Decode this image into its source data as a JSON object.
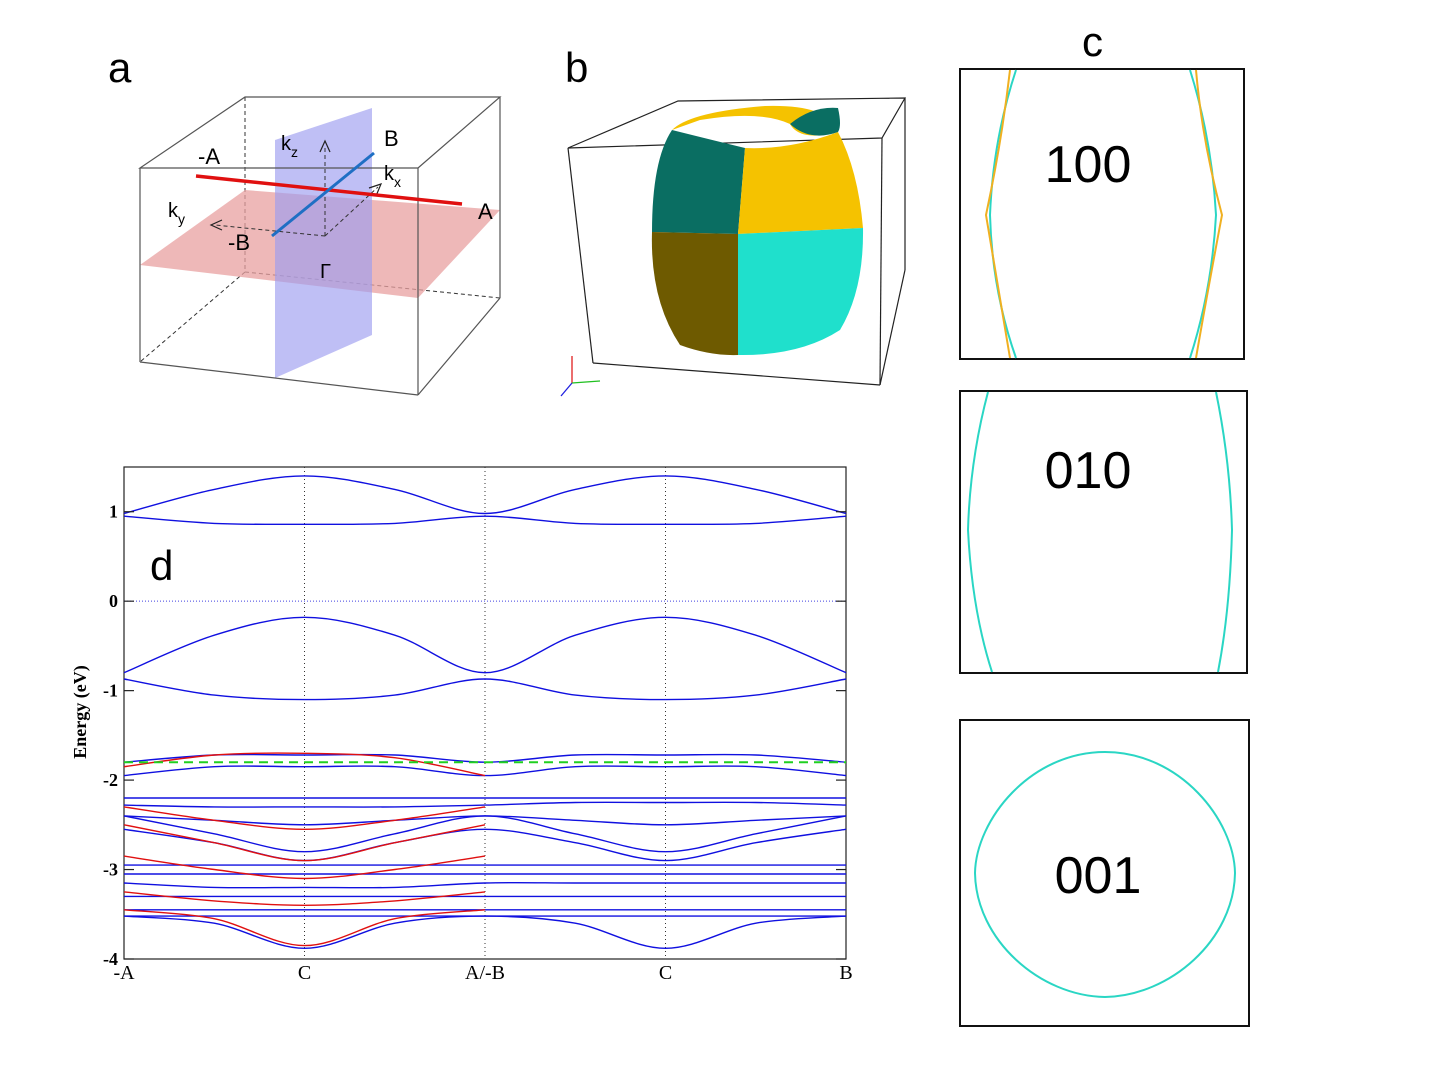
{
  "panels": {
    "a": "a",
    "b": "b",
    "c": "c",
    "d": "d"
  },
  "panel_a": {
    "labels": {
      "minus_a": "-A",
      "a": "A",
      "b": "B",
      "minus_b": "-B",
      "gamma": "Γ",
      "kz": "k",
      "kz_sub": "z",
      "kx": "k",
      "kx_sub": "x",
      "ky": "k",
      "ky_sub": "y"
    },
    "colors": {
      "plane_h": "#e8a0a0",
      "plane_v": "#9c9cf0",
      "line_a": "#e01010",
      "line_b": "#1f6fc4"
    }
  },
  "panel_b": {
    "colors": {
      "yellow": "#f5c200",
      "yellow_dark": "#6e5a00",
      "teal": "#1fe0cc",
      "teal_dark": "#0a6e62"
    }
  },
  "panel_c": {
    "slices": [
      {
        "label": "100"
      },
      {
        "label": "010"
      },
      {
        "label": "001"
      }
    ],
    "colors": {
      "cyan": "#2ad6c4",
      "orange": "#f0b020"
    }
  },
  "chart_data": {
    "type": "line",
    "title": "",
    "xlabel": "",
    "ylabel": "Energy (eV)",
    "ylim": [
      -4,
      1.5
    ],
    "yticks": [
      1,
      0,
      -1,
      -2,
      -3,
      -4
    ],
    "ytick_labels": [
      "1",
      "0",
      "-1",
      "-2",
      "-3",
      "-4"
    ],
    "x_ticks": [
      0,
      1,
      2,
      3,
      4
    ],
    "x_tick_labels": [
      "-A",
      "C",
      "A/-B",
      "C",
      "B"
    ],
    "fermi_level": 0,
    "reference_line": -1.8,
    "colors": {
      "blue": "#1010e0",
      "red": "#e01010",
      "green": "#20d020",
      "fermi": "#4040e0"
    },
    "series": [
      {
        "name": "cb_upper",
        "color": "blue",
        "x": [
          0,
          0.5,
          1,
          1.5,
          2,
          2.5,
          3,
          3.5,
          4
        ],
        "values": [
          0.98,
          1.25,
          1.4,
          1.25,
          0.98,
          1.25,
          1.4,
          1.25,
          0.98
        ]
      },
      {
        "name": "cb_lower",
        "color": "blue",
        "x": [
          0,
          0.5,
          1,
          1.5,
          2,
          2.5,
          3,
          3.5,
          4
        ],
        "values": [
          0.95,
          0.87,
          0.86,
          0.87,
          0.95,
          0.87,
          0.86,
          0.87,
          0.95
        ]
      },
      {
        "name": "vb1",
        "color": "blue",
        "x": [
          0,
          0.5,
          1,
          1.5,
          2,
          2.5,
          3,
          3.5,
          4
        ],
        "values": [
          -0.8,
          -0.38,
          -0.18,
          -0.38,
          -0.8,
          -0.38,
          -0.18,
          -0.38,
          -0.8
        ]
      },
      {
        "name": "vb2",
        "color": "blue",
        "x": [
          0,
          0.5,
          1,
          1.5,
          2,
          2.5,
          3,
          3.5,
          4
        ],
        "values": [
          -0.87,
          -1.05,
          -1.1,
          -1.05,
          -0.87,
          -1.05,
          -1.1,
          -1.05,
          -0.87
        ]
      },
      {
        "name": "vb3",
        "color": "blue",
        "x": [
          0,
          0.5,
          1,
          1.5,
          2,
          2.5,
          3,
          3.5,
          4
        ],
        "values": [
          -1.8,
          -1.72,
          -1.72,
          -1.72,
          -1.8,
          -1.72,
          -1.72,
          -1.72,
          -1.8
        ]
      },
      {
        "name": "vb4",
        "color": "blue",
        "x": [
          0,
          0.5,
          1,
          1.5,
          2,
          2.5,
          3,
          3.5,
          4
        ],
        "values": [
          -1.95,
          -1.85,
          -1.85,
          -1.85,
          -1.95,
          -1.85,
          -1.85,
          -1.85,
          -1.95
        ]
      },
      {
        "name": "vb5",
        "color": "blue",
        "x": [
          0,
          0.5,
          1,
          1.5,
          2,
          2.5,
          3,
          3.5,
          4
        ],
        "values": [
          -2.2,
          -2.2,
          -2.2,
          -2.2,
          -2.2,
          -2.2,
          -2.2,
          -2.2,
          -2.2
        ]
      },
      {
        "name": "vb6",
        "color": "blue",
        "x": [
          0,
          0.5,
          1,
          1.5,
          2,
          2.5,
          3,
          3.5,
          4
        ],
        "values": [
          -2.28,
          -2.3,
          -2.3,
          -2.3,
          -2.28,
          -2.25,
          -2.25,
          -2.25,
          -2.28
        ]
      },
      {
        "name": "vb7",
        "color": "blue",
        "x": [
          0,
          0.5,
          1,
          1.5,
          2,
          2.5,
          3,
          3.5,
          4
        ],
        "values": [
          -2.4,
          -2.45,
          -2.5,
          -2.45,
          -2.4,
          -2.45,
          -2.5,
          -2.45,
          -2.4
        ]
      },
      {
        "name": "vb8",
        "color": "blue",
        "x": [
          0,
          0.5,
          1,
          1.5,
          2,
          2.5,
          3,
          3.5,
          4
        ],
        "values": [
          -2.55,
          -2.7,
          -2.9,
          -2.7,
          -2.55,
          -2.7,
          -2.9,
          -2.7,
          -2.55
        ]
      },
      {
        "name": "vb9",
        "color": "blue",
        "x": [
          0,
          0.5,
          1,
          1.5,
          2,
          2.5,
          3,
          3.5,
          4
        ],
        "values": [
          -2.4,
          -2.6,
          -2.8,
          -2.6,
          -2.4,
          -2.6,
          -2.8,
          -2.6,
          -2.4
        ]
      },
      {
        "name": "vb10",
        "color": "blue",
        "x": [
          0,
          0.5,
          1,
          1.5,
          2,
          2.5,
          3,
          3.5,
          4
        ],
        "values": [
          -2.95,
          -2.95,
          -2.95,
          -2.95,
          -2.95,
          -2.95,
          -2.95,
          -2.95,
          -2.95
        ]
      },
      {
        "name": "vb11",
        "color": "blue",
        "x": [
          0,
          0.5,
          1,
          1.5,
          2,
          2.5,
          3,
          3.5,
          4
        ],
        "values": [
          -3.05,
          -3.05,
          -3.05,
          -3.05,
          -3.05,
          -3.05,
          -3.05,
          -3.05,
          -3.05
        ]
      },
      {
        "name": "vb12",
        "color": "blue",
        "x": [
          0,
          0.5,
          1,
          1.5,
          2,
          2.5,
          3,
          3.5,
          4
        ],
        "values": [
          -3.15,
          -3.2,
          -3.2,
          -3.2,
          -3.15,
          -3.15,
          -3.15,
          -3.15,
          -3.15
        ]
      },
      {
        "name": "vb13",
        "color": "blue",
        "x": [
          0,
          0.5,
          1,
          1.5,
          2,
          2.5,
          3,
          3.5,
          4
        ],
        "values": [
          -3.3,
          -3.3,
          -3.3,
          -3.3,
          -3.3,
          -3.3,
          -3.3,
          -3.3,
          -3.3
        ]
      },
      {
        "name": "vb14",
        "color": "blue",
        "x": [
          0,
          0.5,
          1,
          1.5,
          2,
          2.5,
          3,
          3.5,
          4
        ],
        "values": [
          -3.45,
          -3.45,
          -3.45,
          -3.45,
          -3.45,
          -3.45,
          -3.45,
          -3.45,
          -3.45
        ]
      },
      {
        "name": "vb15",
        "color": "blue",
        "x": [
          0,
          0.5,
          1,
          1.5,
          2,
          2.5,
          3,
          3.5,
          4
        ],
        "values": [
          -3.52,
          -3.52,
          -3.52,
          -3.52,
          -3.52,
          -3.52,
          -3.52,
          -3.52,
          -3.52
        ]
      },
      {
        "name": "vb16",
        "color": "blue",
        "x": [
          0,
          0.5,
          1,
          1.5,
          2,
          2.5,
          3,
          3.5,
          4
        ],
        "values": [
          -3.52,
          -3.6,
          -3.88,
          -3.6,
          -3.52,
          -3.6,
          -3.88,
          -3.6,
          -3.52
        ]
      },
      {
        "name": "red1",
        "color": "red",
        "x": [
          0,
          0.5,
          1,
          1.5,
          2
        ],
        "values": [
          -1.85,
          -1.72,
          -1.7,
          -1.75,
          -1.95
        ]
      },
      {
        "name": "red2",
        "color": "red",
        "x": [
          0,
          0.5,
          1,
          1.5,
          2
        ],
        "values": [
          -2.3,
          -2.45,
          -2.55,
          -2.45,
          -2.3
        ]
      },
      {
        "name": "red3",
        "color": "red",
        "x": [
          0,
          0.5,
          1,
          1.5,
          2
        ],
        "values": [
          -2.5,
          -2.7,
          -2.9,
          -2.7,
          -2.5
        ]
      },
      {
        "name": "red4",
        "color": "red",
        "x": [
          0,
          0.5,
          1,
          1.5,
          2
        ],
        "values": [
          -2.85,
          -3.0,
          -3.1,
          -3.0,
          -2.85
        ]
      },
      {
        "name": "red5",
        "color": "red",
        "x": [
          0,
          0.5,
          1,
          1.5,
          2
        ],
        "values": [
          -3.25,
          -3.35,
          -3.4,
          -3.35,
          -3.25
        ]
      },
      {
        "name": "red6",
        "color": "red",
        "x": [
          0,
          0.5,
          1,
          1.5,
          2
        ],
        "values": [
          -3.45,
          -3.55,
          -3.85,
          -3.55,
          -3.45
        ]
      }
    ]
  }
}
